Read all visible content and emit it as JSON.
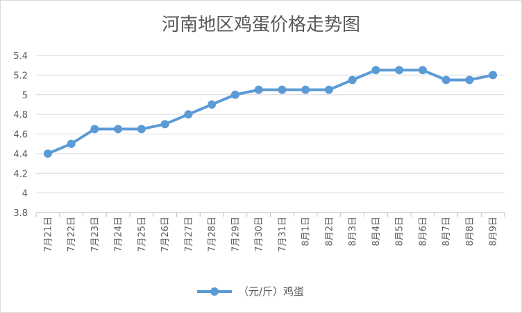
{
  "chart_data": {
    "type": "line",
    "title": "河南地区鸡蛋价格走势图",
    "categories": [
      "7月21日",
      "7月22日",
      "7月23日",
      "7月24日",
      "7月25日",
      "7月26日",
      "7月27日",
      "7月28日",
      "7月29日",
      "7月30日",
      "7月31日",
      "8月1日",
      "8月2日",
      "8月3日",
      "8月4日",
      "8月5日",
      "8月6日",
      "8月7日",
      "8月8日",
      "8月9日"
    ],
    "series": [
      {
        "name": "（元/斤）鸡蛋",
        "values": [
          4.4,
          4.5,
          4.65,
          4.65,
          4.65,
          4.7,
          4.8,
          4.9,
          5.0,
          5.05,
          5.05,
          5.05,
          5.05,
          5.15,
          5.25,
          5.25,
          5.25,
          5.15,
          5.15,
          5.2
        ],
        "color": "#5b9bd5"
      }
    ],
    "y_ticks": [
      "3.8",
      "4",
      "4.2",
      "4.4",
      "4.6",
      "4.8",
      "5",
      "5.2",
      "5.4"
    ],
    "ylim": [
      3.8,
      5.4
    ],
    "grid": "horizontal",
    "legend_position": "bottom"
  }
}
